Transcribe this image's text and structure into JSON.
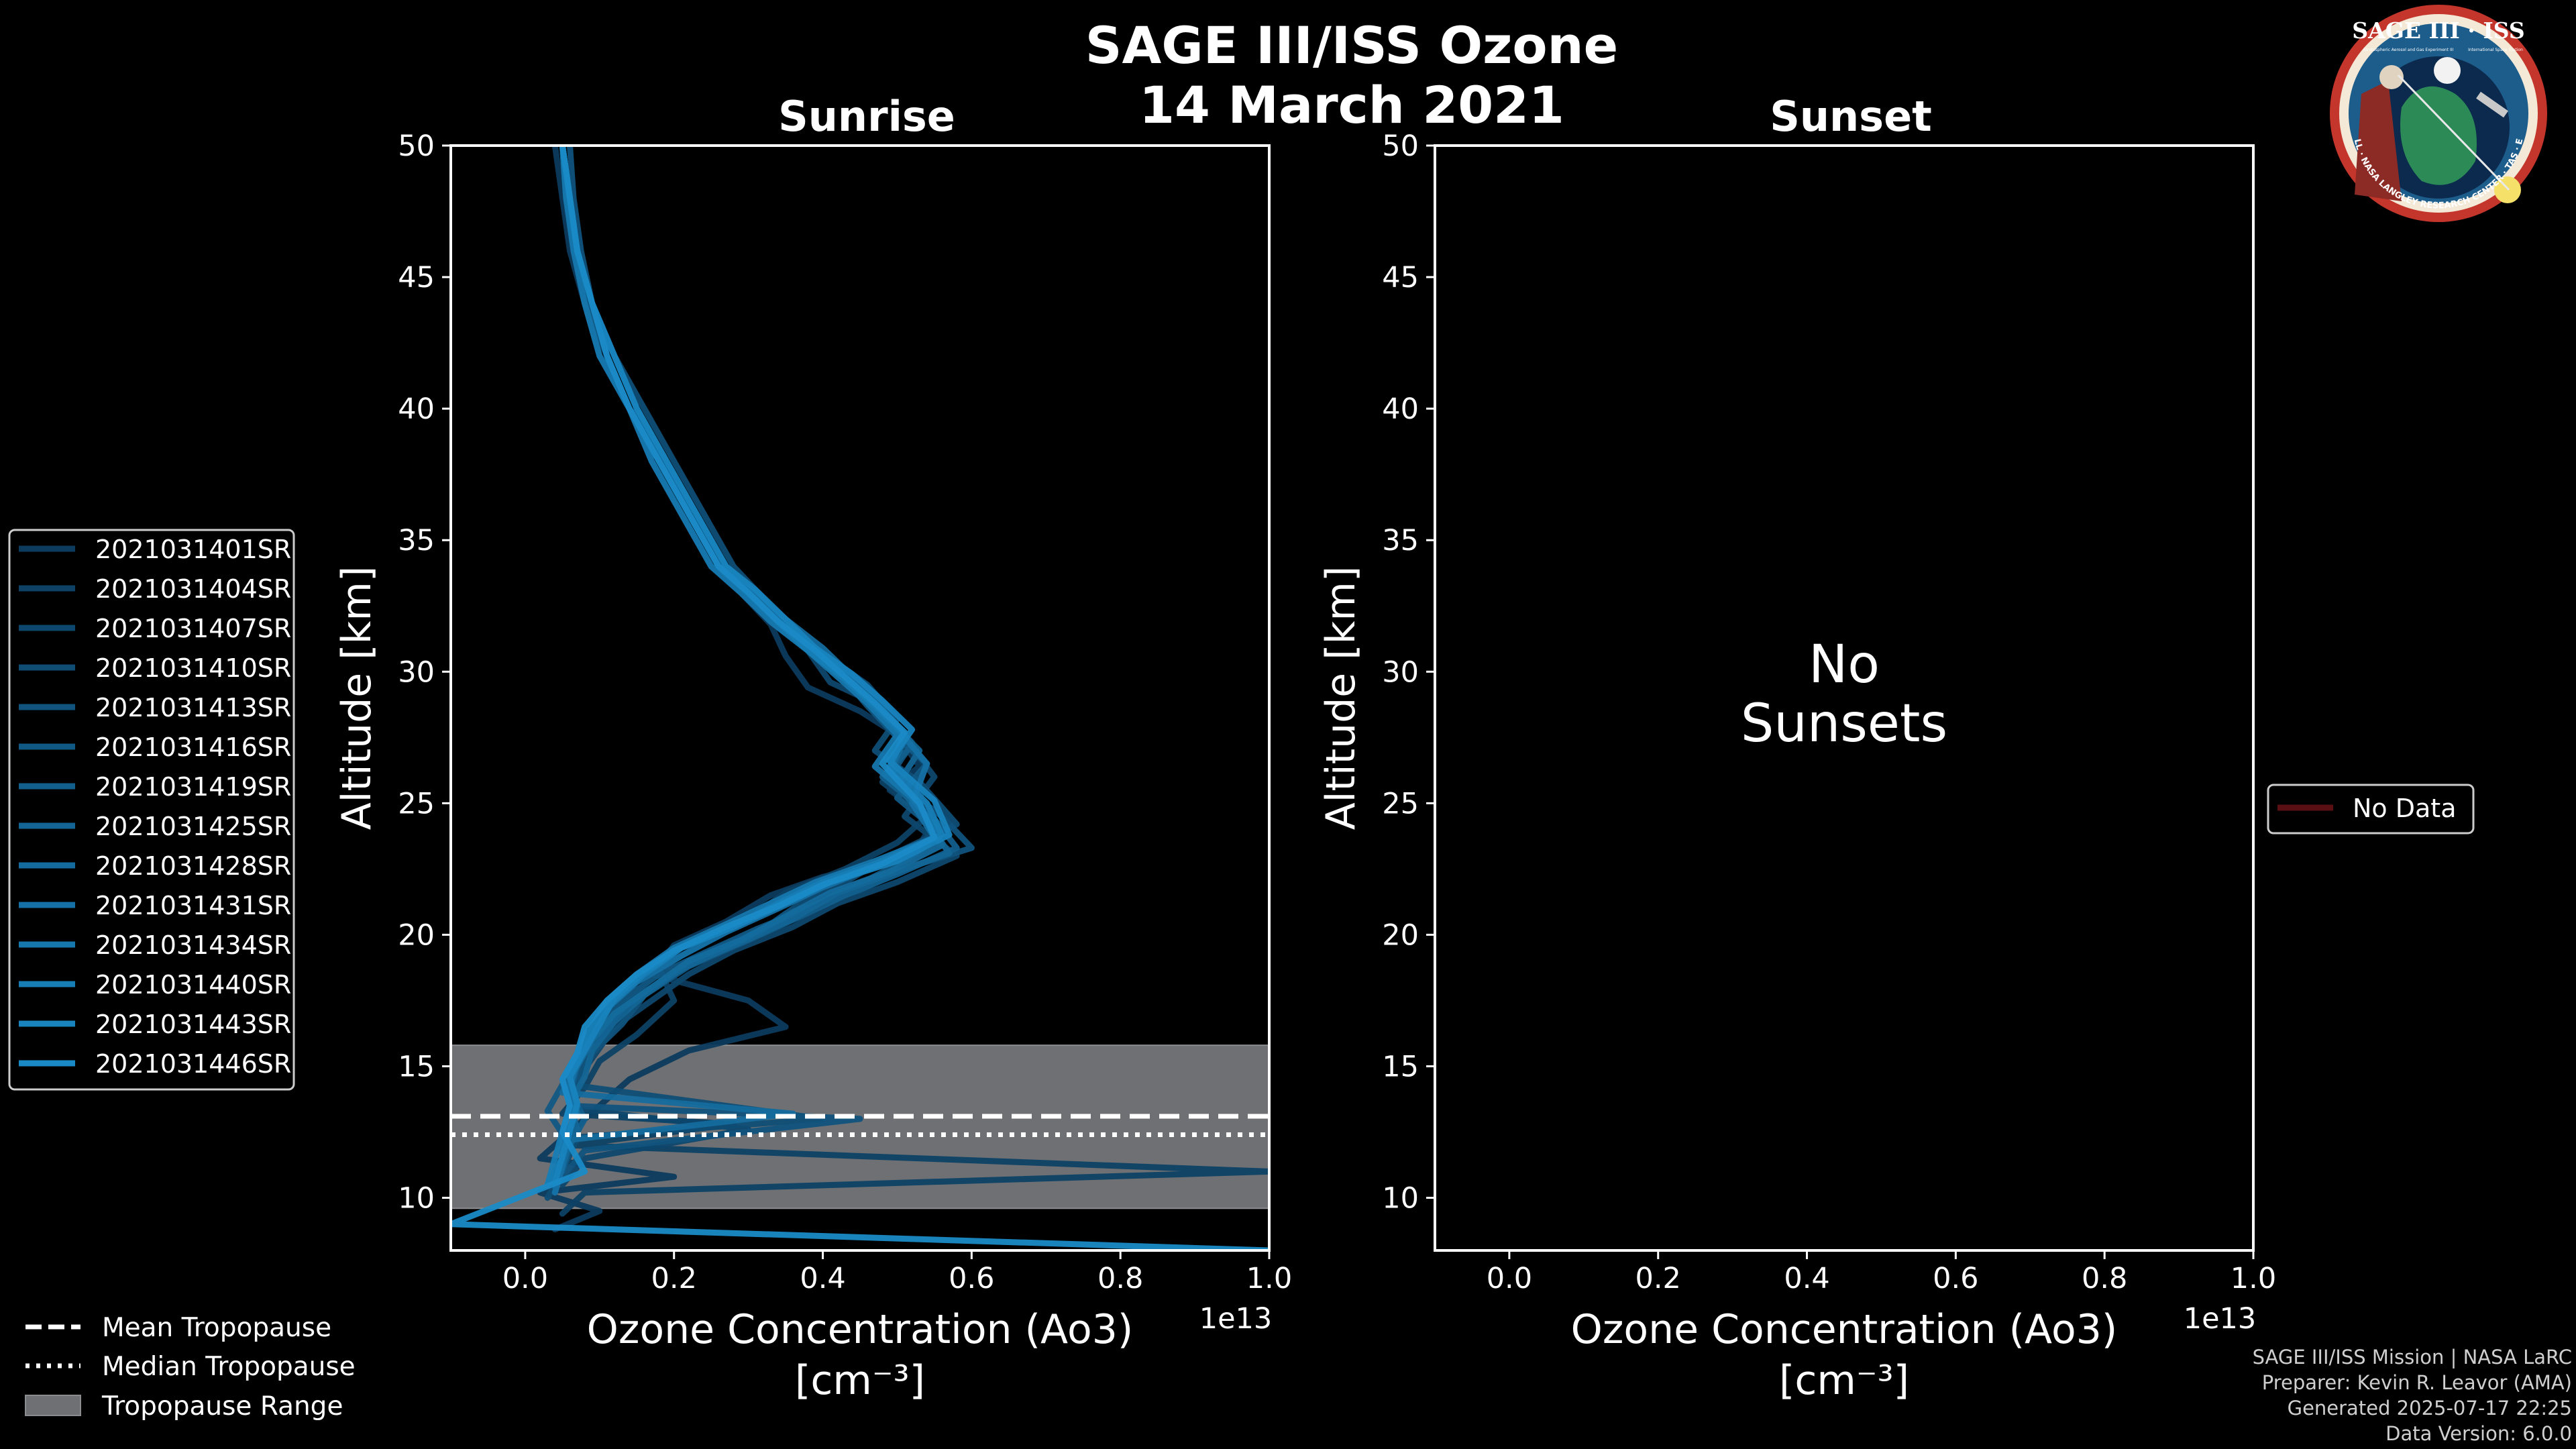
{
  "title_line1": "SAGE III/ISS Ozone",
  "title_line2": "14 March 2021",
  "logo": {
    "text": "SAGE III · ISS",
    "ring_text": "BALL · NASA LANGLEY RESEARCH CENTER · TAS · ESA",
    "small_left": "Stratospheric Aerosol and Gas Experiment III",
    "small_right": "International Space Station"
  },
  "footer": {
    "line1": "SAGE III/ISS Mission | NASA LaRC",
    "line2": "Preparer: Kevin R. Leavor (AMA)",
    "line3": "Generated 2025-07-17 22:25",
    "line4": "Data Version: 6.0.0"
  },
  "colors": {
    "tropo_band": "#6e7073",
    "no_data": "#5a0f12"
  },
  "chart_data": [
    {
      "panel": "Sunrise",
      "type": "line",
      "title": "Sunrise",
      "xlabel": "Ozone Concentration (Ao3)",
      "xunit": "[cm⁻³]",
      "x_multiplier": "1e13",
      "ylabel": "Altitude [km]",
      "xlim": [
        -0.1,
        1.0
      ],
      "ylim": [
        8,
        50
      ],
      "xticks": [
        "0.0",
        "0.2",
        "0.4",
        "0.6",
        "0.8",
        "1.0"
      ],
      "yticks": [
        "10",
        "15",
        "20",
        "25",
        "30",
        "35",
        "40",
        "45",
        "50"
      ],
      "tropopause": {
        "mean": 13.1,
        "median": 12.4,
        "range": [
          9.6,
          15.8
        ]
      },
      "series": [
        {
          "name": "2021031401SR",
          "color": "#0c3b5e",
          "x": [
            0.04,
            0.05,
            0.06,
            0.08,
            0.11,
            0.14,
            0.18,
            0.22,
            0.26,
            0.29,
            0.33,
            0.35,
            0.38,
            0.45,
            0.5,
            0.53,
            0.49,
            0.55,
            0.52,
            0.4,
            0.33,
            0.27,
            0.2,
            0.17,
            0.3,
            0.35,
            0.22,
            0.14,
            0.1,
            0.06,
            0.02,
            0.2,
            0.02,
            0.1,
            0.04
          ],
          "y": [
            50,
            48,
            46,
            44,
            42,
            40,
            38,
            36,
            34,
            33,
            31.8,
            30.6,
            29.4,
            28.5,
            27.6,
            26.4,
            25.5,
            24.3,
            23,
            22.2,
            21.5,
            20.5,
            19.6,
            18.5,
            17.5,
            16.5,
            15.6,
            14.5,
            13.5,
            12.5,
            11.5,
            10.8,
            10.2,
            9.5,
            8.8
          ]
        },
        {
          "name": "2021031404SR",
          "color": "#0d4165",
          "x": [
            0.05,
            0.06,
            0.07,
            0.09,
            0.12,
            0.15,
            0.19,
            0.22,
            0.27,
            0.31,
            0.36,
            0.4,
            0.45,
            0.47,
            0.52,
            0.48,
            0.54,
            0.5,
            0.43,
            0.35,
            0.3,
            0.24,
            0.18,
            0.2,
            0.15,
            0.1,
            0.08,
            0.05,
            0.28,
            0.06,
            1.0,
            0.08,
            0.05
          ],
          "y": [
            50,
            48,
            46,
            44,
            42,
            40,
            38,
            36,
            34,
            32.8,
            31.7,
            30.5,
            29.5,
            28.5,
            27.2,
            25.8,
            24.5,
            23.5,
            22.5,
            21.6,
            20.6,
            19.7,
            18.7,
            17.5,
            16.2,
            15.2,
            14.2,
            13.2,
            12.8,
            12,
            11,
            10.2,
            9.4
          ]
        },
        {
          "name": "2021031407SR",
          "color": "#0e476d",
          "x": [
            0.05,
            0.055,
            0.065,
            0.08,
            0.1,
            0.14,
            0.17,
            0.21,
            0.25,
            0.29,
            0.33,
            0.38,
            0.41,
            0.47,
            0.51,
            0.55,
            0.51,
            0.58,
            0.5,
            0.42,
            0.36,
            0.28,
            0.22,
            0.17,
            0.12,
            0.09,
            0.07,
            0.06,
            0.3,
            0.08,
            0.05
          ],
          "y": [
            50,
            48,
            46,
            44,
            42,
            40,
            38,
            36,
            34,
            33,
            31.9,
            30.8,
            29.6,
            28.8,
            27.5,
            26,
            24.5,
            23,
            22,
            21.2,
            20.3,
            19.4,
            18.5,
            17.5,
            16.5,
            15.3,
            14.5,
            13.4,
            12.6,
            11.5,
            10.5
          ]
        },
        {
          "name": "2021031410SR",
          "color": "#0f4d75",
          "x": [
            0.05,
            0.06,
            0.07,
            0.09,
            0.12,
            0.16,
            0.2,
            0.24,
            0.28,
            0.32,
            0.36,
            0.41,
            0.46,
            0.5,
            0.47,
            0.53,
            0.58,
            0.49,
            0.43,
            0.37,
            0.32,
            0.25,
            0.2,
            0.14,
            0.11,
            0.08,
            0.06,
            0.4,
            0.07,
            0.05,
            0.03
          ],
          "y": [
            50,
            48,
            46,
            44,
            42,
            40,
            38,
            36,
            34,
            32.8,
            31.5,
            30.5,
            29.5,
            28.2,
            27,
            25.8,
            24.2,
            23,
            22,
            21.2,
            20.2,
            19.4,
            18.5,
            17.5,
            16.5,
            15.3,
            14.3,
            13,
            12.3,
            11,
            10
          ]
        },
        {
          "name": "2021031413SR",
          "color": "#10537d",
          "x": [
            0.06,
            0.065,
            0.075,
            0.09,
            0.12,
            0.15,
            0.18,
            0.23,
            0.27,
            0.3,
            0.35,
            0.4,
            0.44,
            0.48,
            0.52,
            0.49,
            0.56,
            0.6,
            0.52,
            0.45,
            0.35,
            0.3,
            0.22,
            0.16,
            0.13,
            0.09,
            0.07,
            0.06,
            0.45,
            0.08,
            0.05
          ],
          "y": [
            50,
            48,
            46,
            44,
            42,
            40,
            38,
            36,
            34,
            33,
            31.8,
            30.6,
            29.7,
            28.5,
            27.3,
            26,
            24.5,
            23.3,
            22.6,
            21.7,
            20.8,
            19.8,
            18.8,
            17.7,
            16.6,
            15.5,
            14.4,
            13.5,
            13,
            11.8,
            10.8
          ]
        },
        {
          "name": "2021031416SR",
          "color": "#115985",
          "x": [
            0.05,
            0.06,
            0.07,
            0.085,
            0.11,
            0.14,
            0.19,
            0.22,
            0.26,
            0.3,
            0.35,
            0.38,
            0.43,
            0.46,
            0.5,
            0.54,
            0.5,
            0.56,
            0.51,
            0.44,
            0.38,
            0.31,
            0.24,
            0.18,
            0.13,
            0.1,
            0.07,
            0.05,
            0.03,
            0.06,
            0.04
          ],
          "y": [
            50,
            48,
            46,
            44,
            42,
            40,
            38,
            36,
            34,
            33,
            32,
            30.8,
            29.7,
            28.7,
            27.5,
            26.5,
            25.2,
            23.8,
            22.8,
            21.8,
            21,
            20.2,
            19.3,
            18.5,
            17.5,
            16.5,
            15.5,
            14.3,
            13.3,
            12,
            11
          ]
        },
        {
          "name": "2021031419SR",
          "color": "#125f8d",
          "x": [
            0.05,
            0.055,
            0.07,
            0.09,
            0.11,
            0.14,
            0.18,
            0.22,
            0.26,
            0.31,
            0.34,
            0.39,
            0.44,
            0.49,
            0.52,
            0.48,
            0.55,
            0.58,
            0.5,
            0.43,
            0.37,
            0.3,
            0.23,
            0.17,
            0.12,
            0.09,
            0.07,
            0.06,
            0.08,
            0.06,
            0.05
          ],
          "y": [
            50,
            48,
            46,
            44,
            42,
            40,
            38,
            36,
            34,
            32.6,
            31.8,
            30.8,
            29.8,
            28.3,
            27.2,
            26,
            24.4,
            23.3,
            22.3,
            21.5,
            20.7,
            19.8,
            19,
            18,
            17,
            16,
            15,
            14,
            13,
            12,
            11
          ]
        },
        {
          "name": "2021031425SR",
          "color": "#136595",
          "x": [
            0.05,
            0.06,
            0.07,
            0.09,
            0.12,
            0.15,
            0.19,
            0.23,
            0.27,
            0.3,
            0.34,
            0.4,
            0.45,
            0.48,
            0.53,
            0.5,
            0.54,
            0.57,
            0.49,
            0.42,
            0.36,
            0.28,
            0.21,
            0.16,
            0.12,
            0.09,
            0.08,
            0.06,
            0.07,
            0.05,
            0.04
          ],
          "y": [
            50,
            48,
            46,
            44,
            42,
            40,
            38,
            36,
            34,
            32.9,
            31.7,
            30.5,
            29.3,
            28.4,
            27,
            25.7,
            24.3,
            23.1,
            22.3,
            21.6,
            20.6,
            19.6,
            18.7,
            17.7,
            16.7,
            15.6,
            14.6,
            13.6,
            12.6,
            11.4,
            10.4
          ]
        },
        {
          "name": "2021031428SR",
          "color": "#146b9d",
          "x": [
            0.05,
            0.06,
            0.07,
            0.09,
            0.11,
            0.14,
            0.18,
            0.22,
            0.26,
            0.3,
            0.35,
            0.4,
            0.44,
            0.48,
            0.51,
            0.49,
            0.53,
            0.56,
            0.49,
            0.41,
            0.35,
            0.29,
            0.22,
            0.17,
            0.12,
            0.09,
            0.07,
            0.05,
            0.36,
            0.06,
            0.05,
            0.04
          ],
          "y": [
            50,
            48,
            46,
            44,
            42,
            40,
            38,
            36,
            34,
            33.2,
            32,
            30.9,
            29.8,
            28.6,
            27.4,
            26.2,
            24.8,
            23.4,
            22.4,
            21.6,
            20.7,
            19.8,
            19,
            18,
            17,
            16,
            15,
            14,
            13.2,
            12.2,
            11.2,
            10.2
          ]
        },
        {
          "name": "2021031431SR",
          "color": "#1571a5",
          "x": [
            0.05,
            0.06,
            0.07,
            0.09,
            0.12,
            0.15,
            0.19,
            0.23,
            0.27,
            0.31,
            0.35,
            0.4,
            0.44,
            0.47,
            0.51,
            0.54,
            0.52,
            0.55,
            0.48,
            0.4,
            0.34,
            0.27,
            0.21,
            0.15,
            0.11,
            0.08,
            0.07,
            0.06,
            0.07,
            0.05,
            0.05,
            0.04
          ],
          "y": [
            50,
            48,
            46,
            44,
            42,
            40,
            38,
            36,
            34,
            33,
            31.8,
            30.7,
            29.6,
            28.6,
            27.5,
            26.5,
            25,
            23.7,
            22.7,
            21.8,
            21,
            20.1,
            19.2,
            18.2,
            17.2,
            16.2,
            15.2,
            14.2,
            13.2,
            12.2,
            11.2,
            10.2
          ]
        },
        {
          "name": "2021031434SR",
          "color": "#1677ad",
          "x": [
            0.05,
            0.055,
            0.065,
            0.08,
            0.1,
            0.14,
            0.17,
            0.21,
            0.25,
            0.29,
            0.33,
            0.38,
            0.42,
            0.46,
            0.5,
            0.47,
            0.52,
            0.56,
            0.47,
            0.39,
            0.33,
            0.27,
            0.2,
            0.15,
            0.11,
            0.09,
            0.07,
            0.06,
            0.07,
            0.06,
            0.05,
            0.03
          ],
          "y": [
            50,
            48,
            46,
            44,
            42,
            40,
            38,
            36,
            34,
            33,
            31.9,
            30.8,
            29.8,
            28.8,
            27.6,
            26.4,
            25.2,
            23.8,
            22.8,
            22,
            21.2,
            20.4,
            19.5,
            18.5,
            17.5,
            16.5,
            15.5,
            14.5,
            13.5,
            12.5,
            11.5,
            10.5
          ]
        },
        {
          "name": "2021031440SR",
          "color": "#177db5",
          "x": [
            0.05,
            0.06,
            0.07,
            0.09,
            0.11,
            0.14,
            0.18,
            0.22,
            0.26,
            0.3,
            0.34,
            0.38,
            0.43,
            0.47,
            0.51,
            0.49,
            0.54,
            0.56,
            0.48,
            0.4,
            0.34,
            0.28,
            0.21,
            0.16,
            0.12,
            0.09,
            0.07,
            0.05,
            0.06,
            0.05,
            0.04,
            0.03
          ],
          "y": [
            50,
            48,
            46,
            44,
            42,
            40,
            38,
            36,
            34,
            33,
            31.9,
            30.8,
            29.7,
            28.7,
            27.6,
            26.4,
            25,
            23.8,
            22.8,
            22,
            21.2,
            20.3,
            19.5,
            18.5,
            17.5,
            16.5,
            15.5,
            14.5,
            13.5,
            12.5,
            11.5,
            10.5
          ]
        },
        {
          "name": "2021031443SR",
          "color": "#1883bd",
          "x": [
            0.05,
            0.06,
            0.07,
            0.09,
            0.12,
            0.15,
            0.19,
            0.23,
            0.27,
            0.31,
            0.35,
            0.39,
            0.44,
            0.48,
            0.52,
            0.49,
            0.55,
            0.57,
            0.5,
            0.41,
            0.35,
            0.28,
            0.21,
            0.16,
            0.12,
            0.1,
            0.08,
            0.06,
            0.07,
            0.06,
            0.05,
            0.04
          ],
          "y": [
            50,
            48,
            46,
            44,
            42,
            40,
            38,
            36,
            34,
            33.1,
            32,
            30.9,
            29.9,
            28.9,
            27.8,
            26.6,
            25.1,
            23.8,
            22.8,
            22,
            21.2,
            20.3,
            19.5,
            18.6,
            17.6,
            16.6,
            15.6,
            14.6,
            13.6,
            12.6,
            11.6,
            10.6
          ]
        },
        {
          "name": "2021031446SR",
          "color": "#1a8ac6",
          "x": [
            0.05,
            0.06,
            0.07,
            0.09,
            0.11,
            0.14,
            0.18,
            0.22,
            0.26,
            0.3,
            0.34,
            0.39,
            0.43,
            0.47,
            0.51,
            0.48,
            0.53,
            0.55,
            0.48,
            0.4,
            0.34,
            0.27,
            0.2,
            0.15,
            0.11,
            0.08,
            0.07,
            0.05,
            0.06,
            0.05,
            0.08,
            -0.1,
            1.0
          ],
          "y": [
            50,
            48,
            46,
            44,
            42,
            40,
            38,
            36,
            34,
            33,
            31.9,
            30.8,
            29.8,
            28.8,
            27.7,
            26.5,
            25,
            23.7,
            22.7,
            21.9,
            21.1,
            20.3,
            19.4,
            18.5,
            17.5,
            16.5,
            15.5,
            14.5,
            13.5,
            12.5,
            11,
            9,
            8
          ]
        }
      ],
      "legend_extra": [
        "Mean Tropopause",
        "Median Tropopause",
        "Tropopause Range"
      ]
    },
    {
      "panel": "Sunset",
      "type": "line",
      "title": "Sunset",
      "xlabel": "Ozone Concentration (Ao3)",
      "xunit": "[cm⁻³]",
      "x_multiplier": "1e13",
      "ylabel": "Altitude [km]",
      "xlim": [
        -0.1,
        1.0
      ],
      "ylim": [
        8,
        50
      ],
      "xticks": [
        "0.0",
        "0.2",
        "0.4",
        "0.6",
        "0.8",
        "1.0"
      ],
      "yticks": [
        "10",
        "15",
        "20",
        "25",
        "30",
        "35",
        "40",
        "45",
        "50"
      ],
      "annotation_line1": "No",
      "annotation_line2": "Sunsets",
      "series": [],
      "legend_entry": "No Data"
    }
  ]
}
